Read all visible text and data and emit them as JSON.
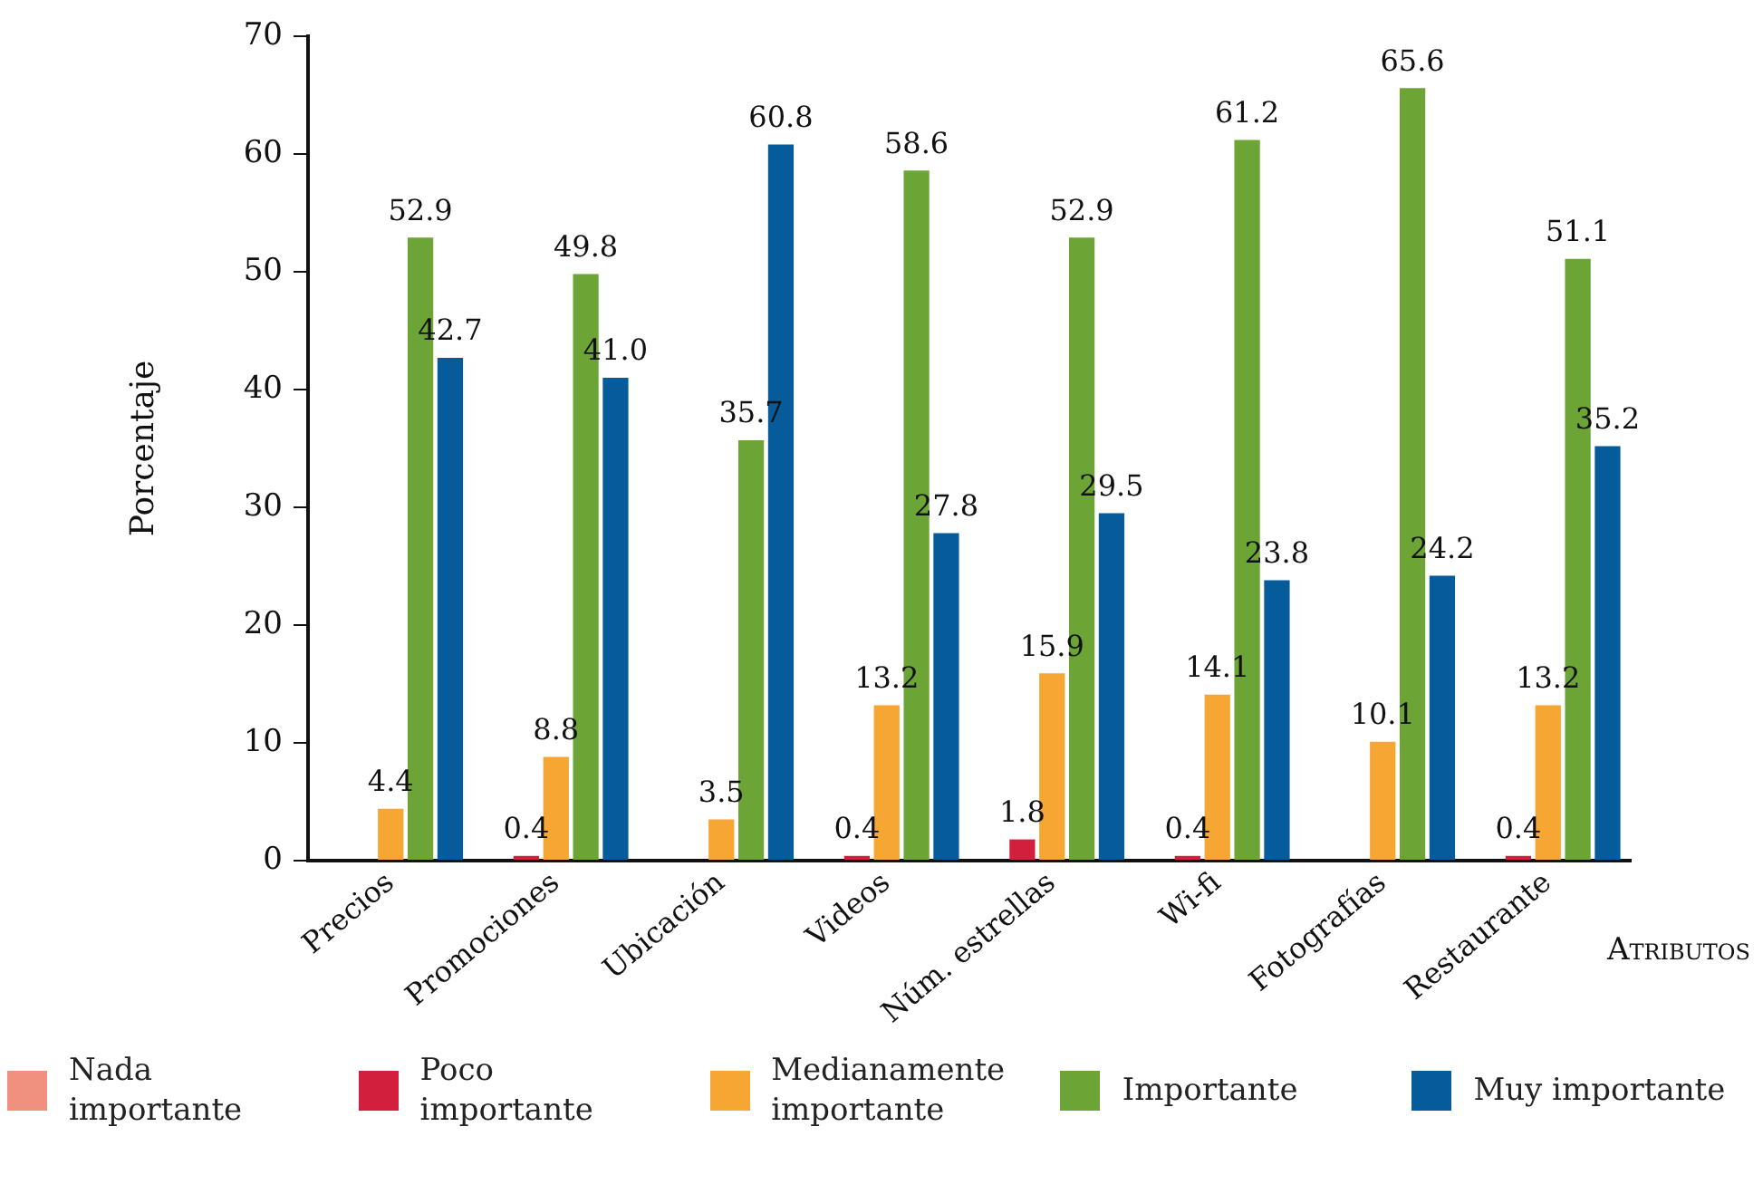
{
  "chart_data": {
    "type": "bar",
    "xlabel": "Atributos",
    "ylabel": "Porcentaje",
    "categories": [
      "Precios",
      "Promociones",
      "Ubicación",
      "Videos",
      "Núm. estrellas",
      "Wi-fi",
      "Fotografías",
      "Restaurante"
    ],
    "series": [
      {
        "name": "Nada importante",
        "color": "#f0907f",
        "values": [
          null,
          null,
          null,
          null,
          null,
          null,
          null,
          null
        ]
      },
      {
        "name": "Poco importante",
        "color": "#d11f3d",
        "values": [
          null,
          0.4,
          null,
          0.4,
          1.8,
          0.4,
          null,
          0.4
        ],
        "value_labels": [
          null,
          "0.4",
          null,
          "0.4",
          "1.8",
          "0.4",
          null,
          "0.4"
        ]
      },
      {
        "name": "Medianamente importante",
        "color": "#f5a633",
        "values": [
          4.4,
          8.8,
          3.5,
          13.2,
          15.9,
          14.1,
          10.1,
          13.2
        ],
        "value_labels": [
          "4.4",
          "8.8",
          "3.5",
          "13.2",
          "15.9",
          "14.1",
          "10.1",
          "13.2"
        ]
      },
      {
        "name": "Importante",
        "color": "#6ca535",
        "values": [
          52.9,
          49.8,
          35.7,
          58.6,
          52.9,
          61.2,
          65.6,
          51.1
        ],
        "value_labels": [
          "52.9",
          "49.8",
          "35.7",
          "58.6",
          "52.9",
          "61.2",
          "65.6",
          "51.1"
        ]
      },
      {
        "name": "Muy importante",
        "color": "#065b9b",
        "values": [
          42.7,
          41.0,
          60.8,
          27.8,
          29.5,
          23.8,
          24.2,
          35.2
        ],
        "value_labels": [
          "42.7",
          "41.0",
          "60.8",
          "27.8",
          "29.5",
          "23.8",
          "24.2",
          "35.2"
        ]
      }
    ],
    "ylim": [
      0,
      70
    ],
    "yticks": [
      0,
      10,
      20,
      30,
      40,
      50,
      60,
      70
    ],
    "grid": false,
    "legend": "bottom"
  }
}
